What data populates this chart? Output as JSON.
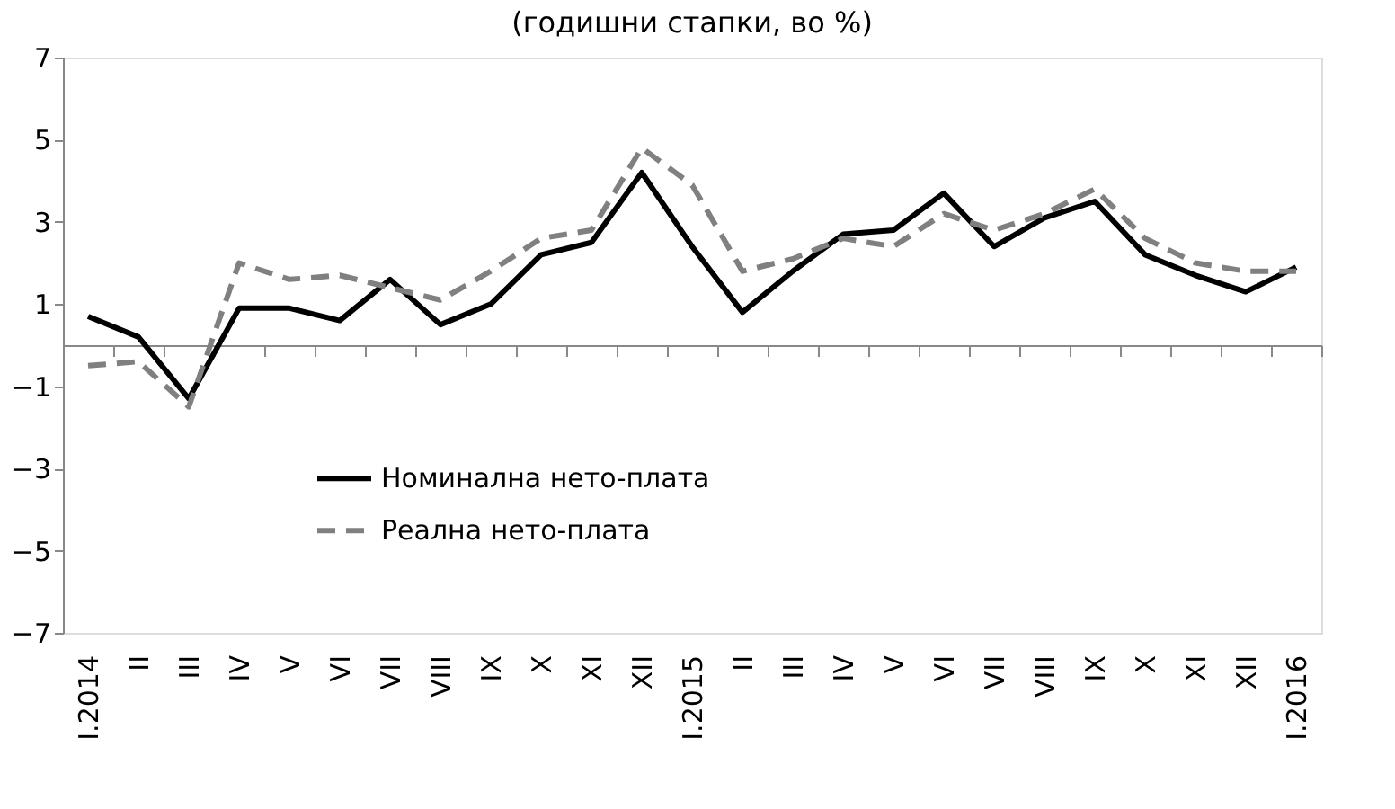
{
  "chart_data": {
    "type": "line",
    "title": "(годишни стапки, во %)",
    "categories": [
      "I.2014",
      "II",
      "III",
      "IV",
      "V",
      "VI",
      "VII",
      "VIII",
      "IX",
      "X",
      "XI",
      "XII",
      "I.2015",
      "II",
      "III",
      "IV",
      "V",
      "VI",
      "VII",
      "VIII",
      "IX",
      "X",
      "XI",
      "XII",
      "I.2016"
    ],
    "series": [
      {
        "name": "Номинална нето-плата",
        "color": "#000000",
        "line_style": "solid",
        "values": [
          0.7,
          0.2,
          -1.3,
          0.9,
          0.9,
          0.6,
          1.6,
          0.5,
          1.0,
          2.2,
          2.5,
          4.2,
          2.4,
          0.8,
          1.8,
          2.7,
          2.8,
          3.7,
          2.4,
          3.1,
          3.5,
          2.2,
          1.7,
          1.3,
          1.9
        ]
      },
      {
        "name": "Реална нето-плата",
        "color": "#808080",
        "line_style": "dashed",
        "values": [
          -0.5,
          -0.4,
          -1.5,
          2.0,
          1.6,
          1.7,
          1.4,
          1.1,
          1.8,
          2.6,
          2.8,
          4.8,
          3.9,
          1.8,
          2.1,
          2.6,
          2.4,
          3.2,
          2.8,
          3.2,
          3.8,
          2.6,
          2.0,
          1.8,
          1.8
        ]
      }
    ],
    "ylim": [
      -7,
      7
    ],
    "yticks": [
      -7,
      -5,
      -3,
      -1,
      1,
      3,
      5,
      7
    ],
    "grid": false,
    "legend": "bottom",
    "marker": "none"
  }
}
